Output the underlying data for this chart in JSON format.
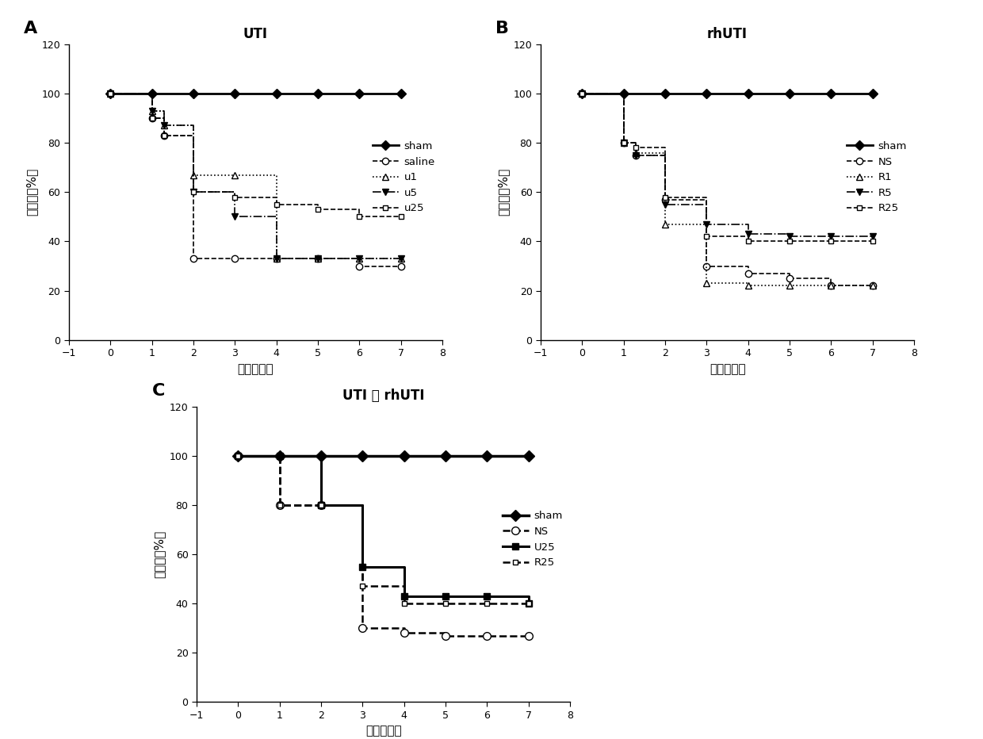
{
  "panel_A": {
    "title": "UTI",
    "label": "A",
    "series": [
      {
        "name": "sham",
        "x": [
          0,
          1,
          2,
          3,
          4,
          5,
          6,
          7
        ],
        "y": [
          100,
          100,
          100,
          100,
          100,
          100,
          100,
          100
        ],
        "linestyle": "-",
        "marker": "D",
        "markersize": 6,
        "linewidth": 2.0,
        "color": "#000000",
        "markerfacecolor": "#000000",
        "drawstyle": "default"
      },
      {
        "name": "saline",
        "x": [
          0,
          1,
          1.3,
          2,
          3,
          4,
          5,
          6,
          7
        ],
        "y": [
          100,
          90,
          83,
          33,
          33,
          33,
          33,
          30,
          30
        ],
        "linestyle": "--",
        "marker": "o",
        "markersize": 6,
        "linewidth": 1.2,
        "color": "#000000",
        "markerfacecolor": "#ffffff",
        "drawstyle": "steps-post"
      },
      {
        "name": "u1",
        "x": [
          0,
          1,
          1.3,
          2,
          3,
          4,
          5,
          6,
          7
        ],
        "y": [
          100,
          93,
          87,
          67,
          67,
          33,
          33,
          33,
          33
        ],
        "linestyle": ":",
        "marker": "^",
        "markersize": 6,
        "linewidth": 1.2,
        "color": "#000000",
        "markerfacecolor": "#ffffff",
        "drawstyle": "steps-post"
      },
      {
        "name": "u5",
        "x": [
          0,
          1,
          1.3,
          2,
          3,
          4,
          5,
          6,
          7
        ],
        "y": [
          100,
          93,
          87,
          60,
          50,
          33,
          33,
          33,
          33
        ],
        "linestyle": "-.",
        "marker": "v",
        "markersize": 6,
        "linewidth": 1.2,
        "color": "#000000",
        "markerfacecolor": "#000000",
        "drawstyle": "steps-post"
      },
      {
        "name": "u25",
        "x": [
          0,
          1,
          1.3,
          2,
          3,
          4,
          5,
          6,
          7
        ],
        "y": [
          100,
          90,
          83,
          60,
          58,
          55,
          53,
          50,
          50
        ],
        "linestyle": "--",
        "marker": "s",
        "markersize": 5,
        "linewidth": 1.2,
        "color": "#000000",
        "markerfacecolor": "#ffffff",
        "drawstyle": "steps-post"
      }
    ]
  },
  "panel_B": {
    "title": "rhUTI",
    "label": "B",
    "series": [
      {
        "name": "sham",
        "x": [
          0,
          1,
          2,
          3,
          4,
          5,
          6,
          7
        ],
        "y": [
          100,
          100,
          100,
          100,
          100,
          100,
          100,
          100
        ],
        "linestyle": "-",
        "marker": "D",
        "markersize": 6,
        "linewidth": 2.0,
        "color": "#000000",
        "markerfacecolor": "#000000",
        "drawstyle": "default"
      },
      {
        "name": "NS",
        "x": [
          0,
          1,
          1.3,
          2,
          3,
          4,
          5,
          6,
          7
        ],
        "y": [
          100,
          80,
          75,
          57,
          30,
          27,
          25,
          22,
          22
        ],
        "linestyle": "--",
        "marker": "o",
        "markersize": 6,
        "linewidth": 1.2,
        "color": "#000000",
        "markerfacecolor": "#ffffff",
        "drawstyle": "steps-post"
      },
      {
        "name": "R1",
        "x": [
          0,
          1,
          1.3,
          2,
          3,
          4,
          5,
          6,
          7
        ],
        "y": [
          100,
          80,
          76,
          47,
          23,
          22,
          22,
          22,
          22
        ],
        "linestyle": ":",
        "marker": "^",
        "markersize": 6,
        "linewidth": 1.2,
        "color": "#000000",
        "markerfacecolor": "#ffffff",
        "drawstyle": "steps-post"
      },
      {
        "name": "R5",
        "x": [
          0,
          1,
          1.3,
          2,
          3,
          4,
          5,
          6,
          7
        ],
        "y": [
          100,
          80,
          75,
          55,
          47,
          43,
          42,
          42,
          42
        ],
        "linestyle": "-.",
        "marker": "v",
        "markersize": 6,
        "linewidth": 1.2,
        "color": "#000000",
        "markerfacecolor": "#000000",
        "drawstyle": "steps-post"
      },
      {
        "name": "R25",
        "x": [
          0,
          1,
          1.3,
          2,
          3,
          4,
          5,
          6,
          7
        ],
        "y": [
          100,
          80,
          78,
          58,
          42,
          40,
          40,
          40,
          40
        ],
        "linestyle": "--",
        "marker": "s",
        "markersize": 5,
        "linewidth": 1.2,
        "color": "#000000",
        "markerfacecolor": "#ffffff",
        "drawstyle": "steps-post"
      }
    ]
  },
  "panel_C": {
    "title": "UTI 和 rhUTI",
    "label": "C",
    "series": [
      {
        "name": "sham",
        "x": [
          0,
          1,
          2,
          3,
          4,
          5,
          6,
          7
        ],
        "y": [
          100,
          100,
          100,
          100,
          100,
          100,
          100,
          100
        ],
        "linestyle": "-",
        "marker": "D",
        "markersize": 7,
        "linewidth": 2.5,
        "color": "#000000",
        "markerfacecolor": "#000000",
        "drawstyle": "default"
      },
      {
        "name": "NS",
        "x": [
          0,
          1,
          2,
          3,
          4,
          5,
          6,
          7
        ],
        "y": [
          100,
          80,
          80,
          30,
          28,
          27,
          27,
          27
        ],
        "linestyle": "--",
        "marker": "o",
        "markersize": 7,
        "linewidth": 1.8,
        "color": "#000000",
        "markerfacecolor": "#ffffff",
        "drawstyle": "steps-post"
      },
      {
        "name": "U25",
        "x": [
          0,
          1,
          2,
          3,
          4,
          5,
          6,
          7
        ],
        "y": [
          100,
          100,
          80,
          55,
          43,
          43,
          43,
          40
        ],
        "linestyle": "-",
        "marker": "s",
        "markersize": 6,
        "linewidth": 2.2,
        "color": "#000000",
        "markerfacecolor": "#000000",
        "drawstyle": "steps-post"
      },
      {
        "name": "R25",
        "x": [
          0,
          1,
          2,
          3,
          4,
          5,
          6,
          7
        ],
        "y": [
          100,
          80,
          80,
          47,
          40,
          40,
          40,
          40
        ],
        "linestyle": "--",
        "marker": "s",
        "markersize": 5,
        "linewidth": 1.8,
        "color": "#000000",
        "markerfacecolor": "#ffffff",
        "drawstyle": "steps-post"
      }
    ]
  },
  "xlabel": "时间（天）",
  "ylabel": "生存率（%）",
  "xlim": [
    -1,
    8
  ],
  "xticks": [
    -1,
    0,
    1,
    2,
    3,
    4,
    5,
    6,
    7,
    8
  ],
  "ylim": [
    0,
    120
  ],
  "yticks": [
    0,
    20,
    40,
    60,
    80,
    100,
    120
  ],
  "background_color": "#ffffff"
}
